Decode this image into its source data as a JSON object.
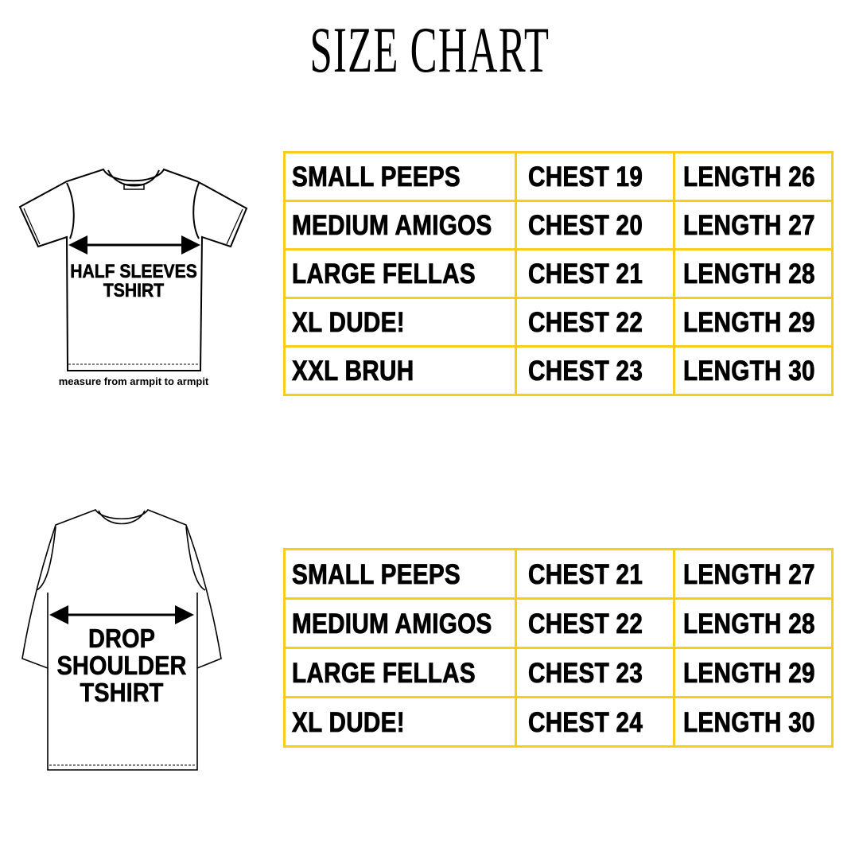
{
  "title": "SIZE CHART",
  "accent_color": "#f9cd1b",
  "half_sleeves": {
    "label_lines": [
      "HALF SLEEVES",
      "TSHIRT"
    ],
    "caption": "measure from armpit to armpit",
    "rows": [
      [
        "SMALL PEEPS",
        "CHEST 19",
        "LENGTH 26"
      ],
      [
        "MEDIUM AMIGOS",
        "CHEST 20",
        "LENGTH 27"
      ],
      [
        "LARGE FELLAS",
        "CHEST 21",
        "LENGTH 28"
      ],
      [
        "XL DUDE!",
        "CHEST 22",
        "LENGTH 29"
      ],
      [
        "XXL BRUH",
        "CHEST 23",
        "LENGTH 30"
      ]
    ]
  },
  "drop_shoulder": {
    "label_lines": [
      "DROP",
      "SHOULDER",
      "TSHIRT"
    ],
    "rows": [
      [
        "SMALL PEEPS",
        "CHEST 21",
        "LENGTH 27"
      ],
      [
        "MEDIUM AMIGOS",
        "CHEST 22",
        "LENGTH 28"
      ],
      [
        "LARGE FELLAS",
        "CHEST 23",
        "LENGTH 29"
      ],
      [
        "XL DUDE!",
        "CHEST 24",
        "LENGTH 30"
      ]
    ]
  }
}
